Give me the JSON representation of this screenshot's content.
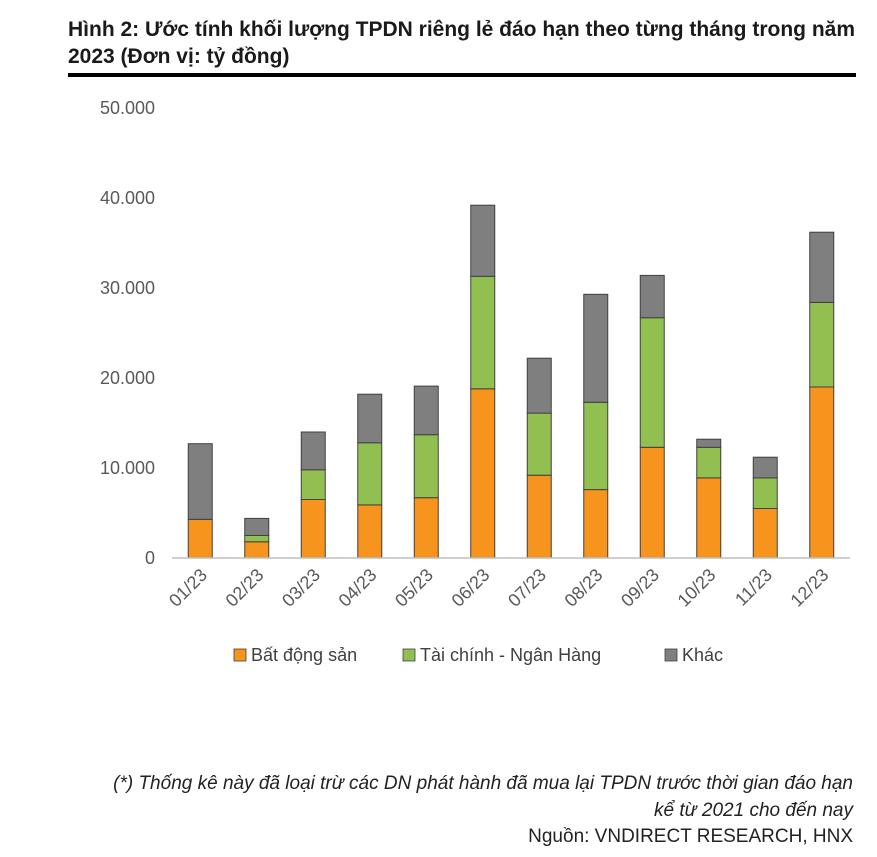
{
  "title": "Hình 2: Ước tính khối lượng TPDN riêng lẻ đáo hạn theo từng tháng trong năm 2023 (Đơn vị: tỷ đồng)",
  "note": "(*) Thống kê này đã loại trừ các DN phát hành đã mua lại TPDN trước thời gian đáo hạn kể từ 2021 cho đến nay",
  "source": "Nguồn: VNDIRECT RESEARCH, HNX",
  "chart_data": {
    "type": "bar",
    "stacked": true,
    "categories": [
      "01/23",
      "02/23",
      "03/23",
      "04/23",
      "05/23",
      "06/23",
      "07/23",
      "08/23",
      "09/23",
      "10/23",
      "11/23",
      "12/23"
    ],
    "series": [
      {
        "name": "Bất động sản",
        "color": "#F7941D",
        "values": [
          4300,
          1800,
          6500,
          5900,
          6700,
          18800,
          9200,
          7600,
          12300,
          8900,
          5500,
          19000
        ]
      },
      {
        "name": "Tài chính - Ngân Hàng",
        "color": "#92C050",
        "values": [
          0,
          700,
          3300,
          6900,
          7000,
          12500,
          6900,
          9700,
          14400,
          3400,
          3400,
          9400
        ]
      },
      {
        "name": "Khác",
        "color": "#7F7F7F",
        "values": [
          8400,
          1900,
          4200,
          5400,
          5400,
          7900,
          6100,
          12000,
          4700,
          900,
          2300,
          7800
        ]
      }
    ],
    "yticks": [
      "0",
      "10.000",
      "20.000",
      "30.000",
      "40.000",
      "50.000"
    ],
    "ylim": [
      0,
      50000
    ],
    "xlabel": "",
    "ylabel": "",
    "legend_position": "bottom"
  }
}
